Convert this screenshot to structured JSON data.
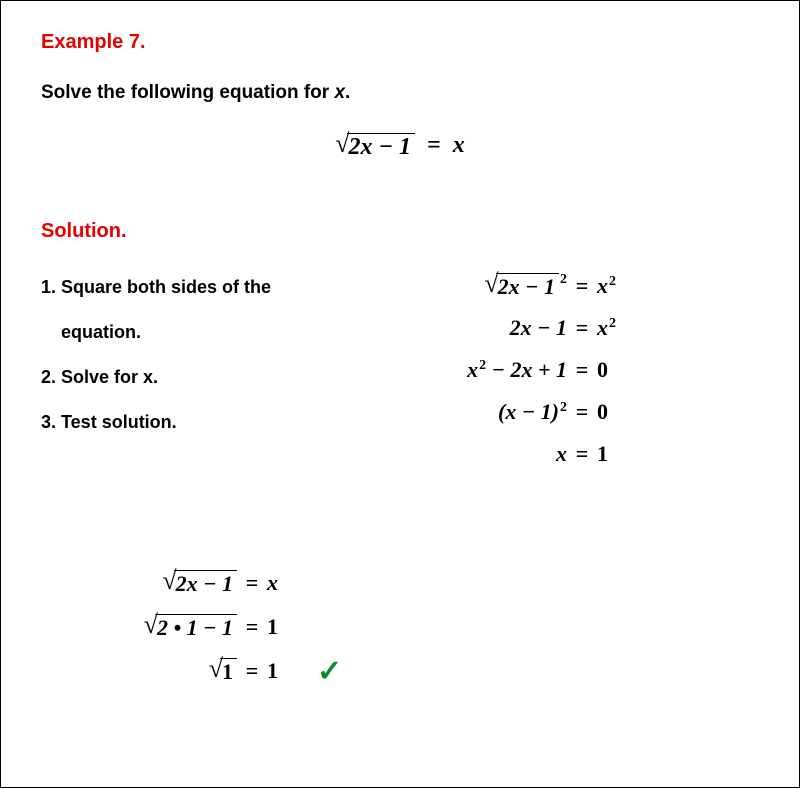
{
  "colors": {
    "accent_red": "#e60000",
    "text": "#000000",
    "check_green": "#0a8a2a",
    "background": "#ffffff",
    "border": "#000000"
  },
  "typography": {
    "heading_fontsize": 20,
    "body_fontsize": 19,
    "step_fontsize": 18,
    "math_fontsize": 22,
    "math_font": "Times New Roman",
    "ui_font": "Arial",
    "weight": "bold"
  },
  "title": "Example 7.",
  "prompt_prefix": "Solve the following equation for ",
  "prompt_var": "x",
  "prompt_suffix": ".",
  "main_equation": {
    "radicand": "2x − 1",
    "eq": "=",
    "rhs": "x"
  },
  "solution_title": "Solution.",
  "steps": [
    "1. Square both sides of the",
    "    equation.",
    "2. Solve for x.",
    "3. Test solution."
  ],
  "work": {
    "line1": {
      "radicand": "2x − 1",
      "sup": "2",
      "eq": "=",
      "rhs_base": "x",
      "rhs_sup": "2"
    },
    "line2": {
      "lhs": "2x − 1",
      "eq": "=",
      "rhs_base": "x",
      "rhs_sup": "2"
    },
    "line3": {
      "lhs": "x",
      "lhs_sup": "2",
      "lhs_rest": " − 2x + 1",
      "eq": "=",
      "rhs": "0"
    },
    "line4": {
      "lhs_open": "(x − 1)",
      "lhs_sup": "2",
      "eq": "=",
      "rhs": "0"
    },
    "line5": {
      "lhs": "x",
      "eq": "=",
      "rhs": "1"
    }
  },
  "test": {
    "line1": {
      "radicand": "2x − 1",
      "eq": "=",
      "rhs": "x"
    },
    "line2": {
      "radicand": "2 • 1 − 1",
      "eq": "=",
      "rhs": "1"
    },
    "line3": {
      "radicand": "1",
      "eq": "=",
      "rhs": "1"
    }
  },
  "check_mark": "✓"
}
